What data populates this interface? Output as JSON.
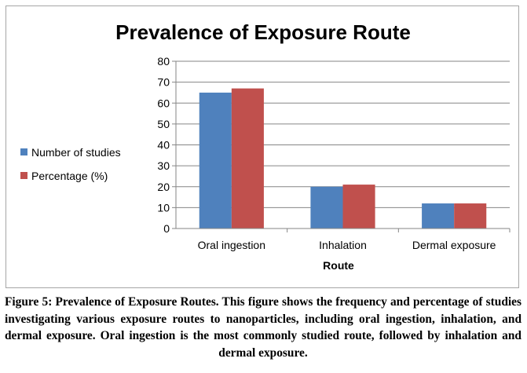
{
  "chart_data": {
    "type": "bar",
    "title": "Prevalence of Exposure Route",
    "categories": [
      "Oral ingestion",
      "Inhalation",
      "Dermal exposure"
    ],
    "series": [
      {
        "name": "Number of studies",
        "values": [
          65,
          20,
          12
        ],
        "color": "#4f81bd"
      },
      {
        "name": "Percentage (%)",
        "values": [
          67,
          21,
          12
        ],
        "color": "#c0504d"
      }
    ],
    "xlabel": "Route",
    "ylabel": "",
    "ylim": [
      0,
      80
    ],
    "yticks": [
      0,
      10,
      20,
      30,
      40,
      50,
      60,
      70,
      80
    ],
    "grid": true,
    "gridColor": "#868686",
    "legend_position": "left"
  },
  "caption": "Figure 5: Prevalence of Exposure Routes. This figure shows the frequency and percentage of studies investigating various exposure routes to nanoparticles, including oral ingestion, inhalation, and dermal exposure. Oral ingestion is the most commonly studied route, followed by inhalation and dermal exposure."
}
